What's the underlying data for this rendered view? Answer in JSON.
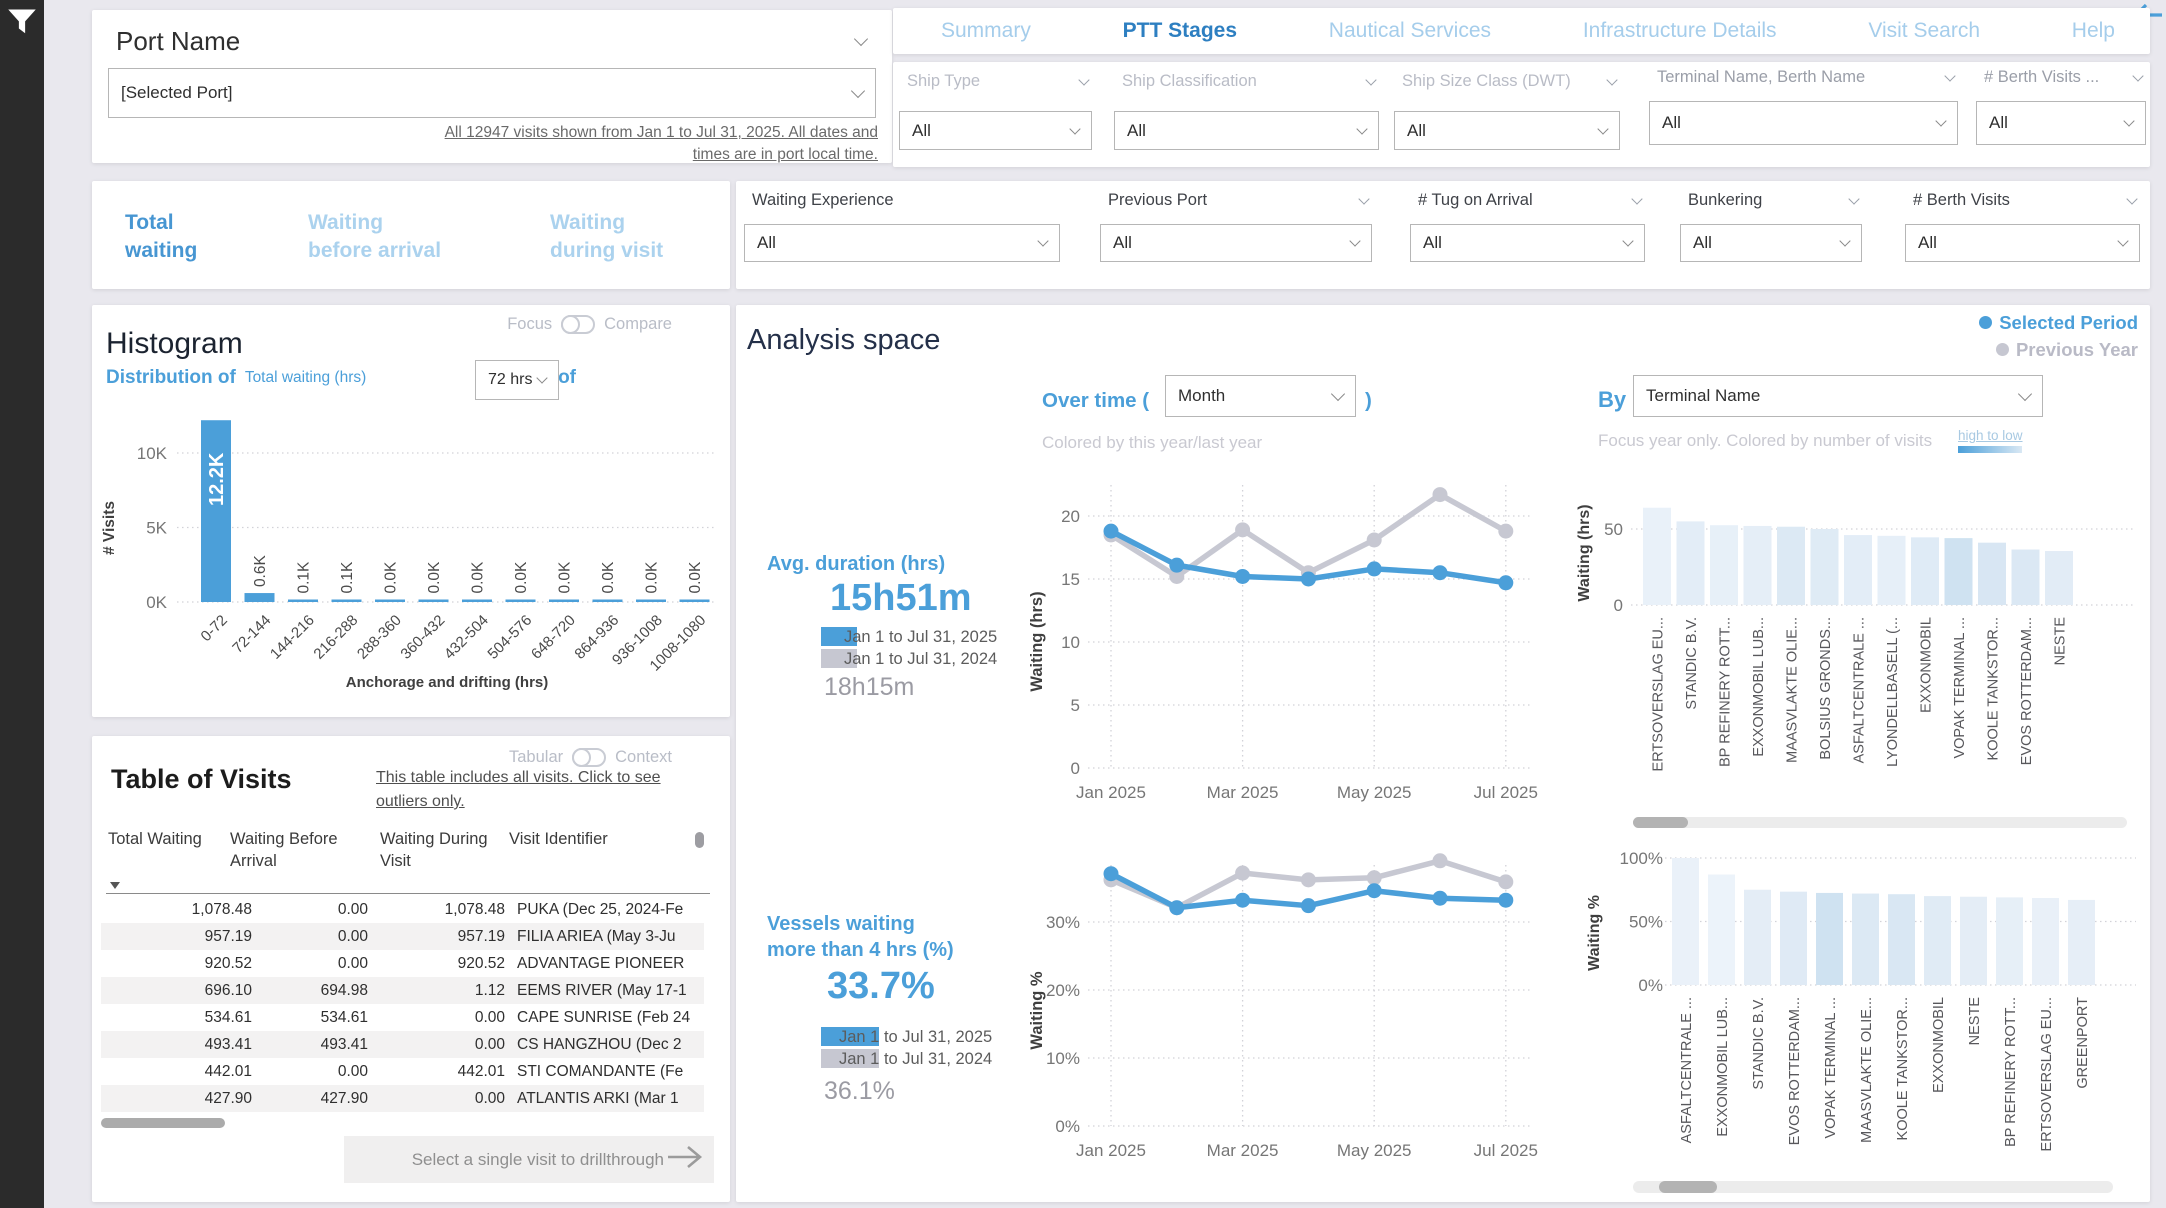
{
  "sidebar": {
    "filter_icon": "funnel-icon"
  },
  "back_arrow_color": "#4b9fd9",
  "port_card": {
    "title": "Port Name",
    "selected": "[Selected Port]",
    "note_line1": "All 12947 visits shown from Jan 1 to Jul 31, 2025. All dates and",
    "note_line2": "times are in port local time."
  },
  "nav_tabs": {
    "items": [
      {
        "label": "Summary",
        "active": false
      },
      {
        "label": "PTT Stages",
        "active": true
      },
      {
        "label": "Nautical Services",
        "active": false
      },
      {
        "label": "Infrastructure Details",
        "active": false
      },
      {
        "label": "Visit Search",
        "active": false
      },
      {
        "label": "Help",
        "active": false
      }
    ]
  },
  "filters_row1": {
    "items": [
      {
        "label": "Ship Type",
        "value": "All",
        "muted": true,
        "tall": false
      },
      {
        "label": "Ship Classification",
        "value": "All",
        "muted": true,
        "tall": false
      },
      {
        "label": "Ship Size Class (DWT)",
        "value": "All",
        "muted": true,
        "tall": false
      },
      {
        "label": "Terminal Name, Berth Name",
        "value": "All",
        "muted": false,
        "tall": true
      },
      {
        "label": "# Berth Visits ...",
        "value": "All",
        "muted": false,
        "tall": true
      }
    ]
  },
  "filters_row2": {
    "items": [
      {
        "label": "Waiting Experience",
        "value": "All",
        "chevron": false
      },
      {
        "label": "Previous Port",
        "value": "All",
        "chevron": true
      },
      {
        "label": "# Tug on Arrival",
        "value": "All",
        "chevron": true
      },
      {
        "label": "Bunkering",
        "value": "All",
        "chevron": true
      },
      {
        "label": "# Berth Visits",
        "value": "All",
        "chevron": true
      }
    ]
  },
  "measure_tabs": {
    "items": [
      {
        "label_line1": "Total",
        "label_line2": "waiting",
        "active": true
      },
      {
        "label_line1": "Waiting",
        "label_line2": "before arrival",
        "active": false
      },
      {
        "label_line1": "Waiting",
        "label_line2": "during visit",
        "active": false
      }
    ]
  },
  "histogram_card": {
    "toggle_left": "Focus",
    "toggle_right": "Compare",
    "title": "Histogram",
    "dist_prefix": "Distribution of",
    "dist_field": "Total waiting (hrs)",
    "bins_label": ", bins of",
    "bins_value": "72 hrs"
  },
  "table_card": {
    "toggle_left": "Tabular",
    "toggle_right": "Context",
    "title": "Table of Visits",
    "note_line1": "This table includes all visits. Click to see",
    "note_line2": "outliers only.",
    "columns": [
      "Total Waiting",
      "Waiting Before Arrival",
      "Waiting During Visit",
      "Visit Identifier"
    ],
    "sort_column": "Total Waiting",
    "rows": [
      [
        "1,078.48",
        "0.00",
        "1,078.48",
        "PUKA (Dec 25, 2024-Fe"
      ],
      [
        "957.19",
        "0.00",
        "957.19",
        "FILIA ARIEA (May 3-Ju"
      ],
      [
        "920.52",
        "0.00",
        "920.52",
        "ADVANTAGE PIONEER"
      ],
      [
        "696.10",
        "694.98",
        "1.12",
        "EEMS RIVER (May 17-1"
      ],
      [
        "534.61",
        "534.61",
        "0.00",
        "CAPE SUNRISE (Feb 24"
      ],
      [
        "493.41",
        "493.41",
        "0.00",
        "CS HANGZHOU (Dec 2"
      ],
      [
        "442.01",
        "0.00",
        "442.01",
        "STI COMANDANTE (Fe"
      ],
      [
        "427.90",
        "427.90",
        "0.00",
        "ATLANTIS ARKI (Mar 1"
      ]
    ],
    "drill_label": "Select a single visit to drillthrough"
  },
  "analysis": {
    "title": "Analysis space",
    "legend": [
      {
        "label": "Selected Period",
        "color": "#4b9fd9"
      },
      {
        "label": "Previous Year",
        "color": "#c6c7d1"
      }
    ],
    "over_time_prefix": "Over time (",
    "over_time_value": "Month",
    "over_time_suffix": ")",
    "over_time_note": "Colored by this year/last year",
    "by_label": "By",
    "by_value": "Terminal Name",
    "by_note": "Focus year only. Colored by number of visits",
    "scale_label": "high to low",
    "kpi_duration": {
      "label": "Avg. duration (hrs)",
      "value": "15h51m",
      "legend_current": "Jan 1 to Jul 31, 2025",
      "legend_previous": "Jan 1 to Jul 31, 2024",
      "previous_value": "18h15m"
    },
    "kpi_pct": {
      "label_line1": "Vessels waiting",
      "label_line2": "more than 4 hrs (%)",
      "value": "33.7%",
      "legend_current": "Jan 1 to Jul 31, 2025",
      "legend_previous": "Jan 1 to Jul 31, 2024",
      "previous_value": "36.1%"
    }
  },
  "colors": {
    "accent": "#4b9fd9",
    "accent_dark": "#2d7fc1",
    "inactive_tab": "#a5cdeb",
    "previous": "#c7c8d2",
    "bar_blue": "#4b9fd9"
  },
  "chart_data": [
    {
      "id": "histogram",
      "type": "bar",
      "title": "Distribution of Total waiting (hrs), bins of 72 hrs",
      "xlabel": "Anchorage and drifting (hrs)",
      "ylabel": "# Visits",
      "categories": [
        "0-72",
        "72-144",
        "144-216",
        "216-288",
        "288-360",
        "360-432",
        "432-504",
        "504-576",
        "648-720",
        "864-936",
        "936-1008",
        "1008-1080"
      ],
      "values": [
        12200,
        600,
        100,
        100,
        0,
        0,
        0,
        0,
        0,
        0,
        0,
        0
      ],
      "bar_labels": [
        "12.2K",
        "0.6K",
        "0.1K",
        "0.1K",
        "0.0K",
        "0.0K",
        "0.0K",
        "0.0K",
        "0.0K",
        "0.0K",
        "0.0K",
        "0.0K"
      ],
      "ytick_values": [
        0,
        5000,
        10000
      ],
      "ytick_labels": [
        "0K",
        "5K",
        "10K"
      ],
      "ylim": [
        0,
        12700
      ]
    },
    {
      "id": "waiting_hrs_over_time",
      "type": "line",
      "ylabel": "Waiting (hrs)",
      "x": [
        "Jan 2025",
        "Feb 2025",
        "Mar 2025",
        "Apr 2025",
        "May 2025",
        "Jun 2025",
        "Jul 2025"
      ],
      "xtick_indices": [
        0,
        2,
        4,
        6
      ],
      "xtick_labels": [
        "Jan 2025",
        "Mar 2025",
        "May 2025",
        "Jul 2025"
      ],
      "series": [
        {
          "name": "Jan 1 to Jul 31, 2024",
          "color": "#c7c8d2",
          "values": [
            18.5,
            15.2,
            18.9,
            15.5,
            18.1,
            21.7,
            18.8
          ]
        },
        {
          "name": "Jan 1 to Jul 31, 2025",
          "color": "#4b9fd9",
          "values": [
            18.8,
            16.1,
            15.2,
            15.0,
            15.8,
            15.5,
            14.7
          ]
        }
      ],
      "ytick_values": [
        0,
        5,
        10,
        15,
        20
      ],
      "ytick_labels": [
        "0",
        "5",
        "10",
        "15",
        "20"
      ],
      "ylim": [
        0,
        22
      ]
    },
    {
      "id": "waiting_pct_over_time",
      "type": "line",
      "ylabel": "Waiting %",
      "x": [
        "Jan 2025",
        "Feb 2025",
        "Mar 2025",
        "Apr 2025",
        "May 2025",
        "Jun 2025",
        "Jul 2025"
      ],
      "xtick_indices": [
        0,
        2,
        4,
        6
      ],
      "xtick_labels": [
        "Jan 2025",
        "Mar 2025",
        "May 2025",
        "Jul 2025"
      ],
      "series": [
        {
          "name": "Jan 1 to Jul 31, 2024",
          "color": "#c7c8d2",
          "values": [
            36.2,
            32.1,
            37.2,
            36.2,
            36.5,
            39.0,
            35.9
          ]
        },
        {
          "name": "Jan 1 to Jul 31, 2025",
          "color": "#4b9fd9",
          "values": [
            37.1,
            32.1,
            33.2,
            32.4,
            34.6,
            33.5,
            33.2
          ]
        }
      ],
      "ytick_values": [
        0,
        10,
        20,
        30
      ],
      "ytick_labels": [
        "0%",
        "10%",
        "20%",
        "30%"
      ],
      "ylim": [
        0,
        40
      ]
    },
    {
      "id": "waiting_hrs_by_terminal",
      "type": "bar",
      "ylabel": "Waiting (hrs)",
      "categories": [
        "ERTSOVERSLAG EU...",
        "STANDIC B.V.",
        "BP REFINERY ROTT...",
        "EXXONMOBIL LUB...",
        "MAASVLAKTE OLIE...",
        "BOLSIUS GRONDS...",
        "ASFALTCENTRALE ...",
        "LYONDELLBASELL (...",
        "EXXONMOBIL",
        "VOPAK TERMINAL ...",
        "KOOLE TANKSTOR...",
        "EVOS ROTTERDAM...",
        "NESTE"
      ],
      "values": [
        64,
        55,
        52.5,
        52,
        51.5,
        50,
        46,
        45.5,
        44.5,
        44,
        41,
        36.5,
        35.5
      ],
      "bar_colors": [
        "#e9f1f9",
        "#e3edf7",
        "#e7f0f8",
        "#e5eef7",
        "#dce9f4",
        "#dfebf5",
        "#e3edf7",
        "#e6eff8",
        "#dfebf6",
        "#cfe2f1",
        "#d8e6f3",
        "#dbe8f4",
        "#e2ecf6"
      ],
      "ytick_values": [
        0,
        50
      ],
      "ytick_labels": [
        "0",
        "50"
      ],
      "ylim": [
        0,
        70
      ]
    },
    {
      "id": "waiting_pct_by_terminal",
      "type": "bar",
      "ylabel": "Waiting %",
      "categories": [
        "ASFALTCENTRALE ...",
        "EXXONMOBIL LUB...",
        "STANDIC B.V.",
        "EVOS ROTTERDAM...",
        "VOPAK TERMINAL ...",
        "MAASVLAKTE OLIE...",
        "KOOLE TANKSTOR...",
        "EXXONMOBIL",
        "NESTE",
        "BP REFINERY ROTT...",
        "ERTSOVERSLAG EU...",
        "GREENPORT"
      ],
      "values": [
        100,
        87,
        75,
        73.5,
        72.5,
        72,
        71.5,
        70,
        69.5,
        69,
        68.5,
        67
      ],
      "bar_colors": [
        "#eaf1f9",
        "#ecf3fa",
        "#e4edf6",
        "#dfeaf5",
        "#cfe2f1",
        "#dce9f4",
        "#d9e7f3",
        "#e0ebf5",
        "#e4edf6",
        "#e6eff7",
        "#e9f0f8",
        "#e6eef7"
      ],
      "ytick_values": [
        0,
        50,
        100
      ],
      "ytick_labels": [
        "0%",
        "50%",
        "100%"
      ],
      "ylim": [
        0,
        105
      ]
    }
  ]
}
